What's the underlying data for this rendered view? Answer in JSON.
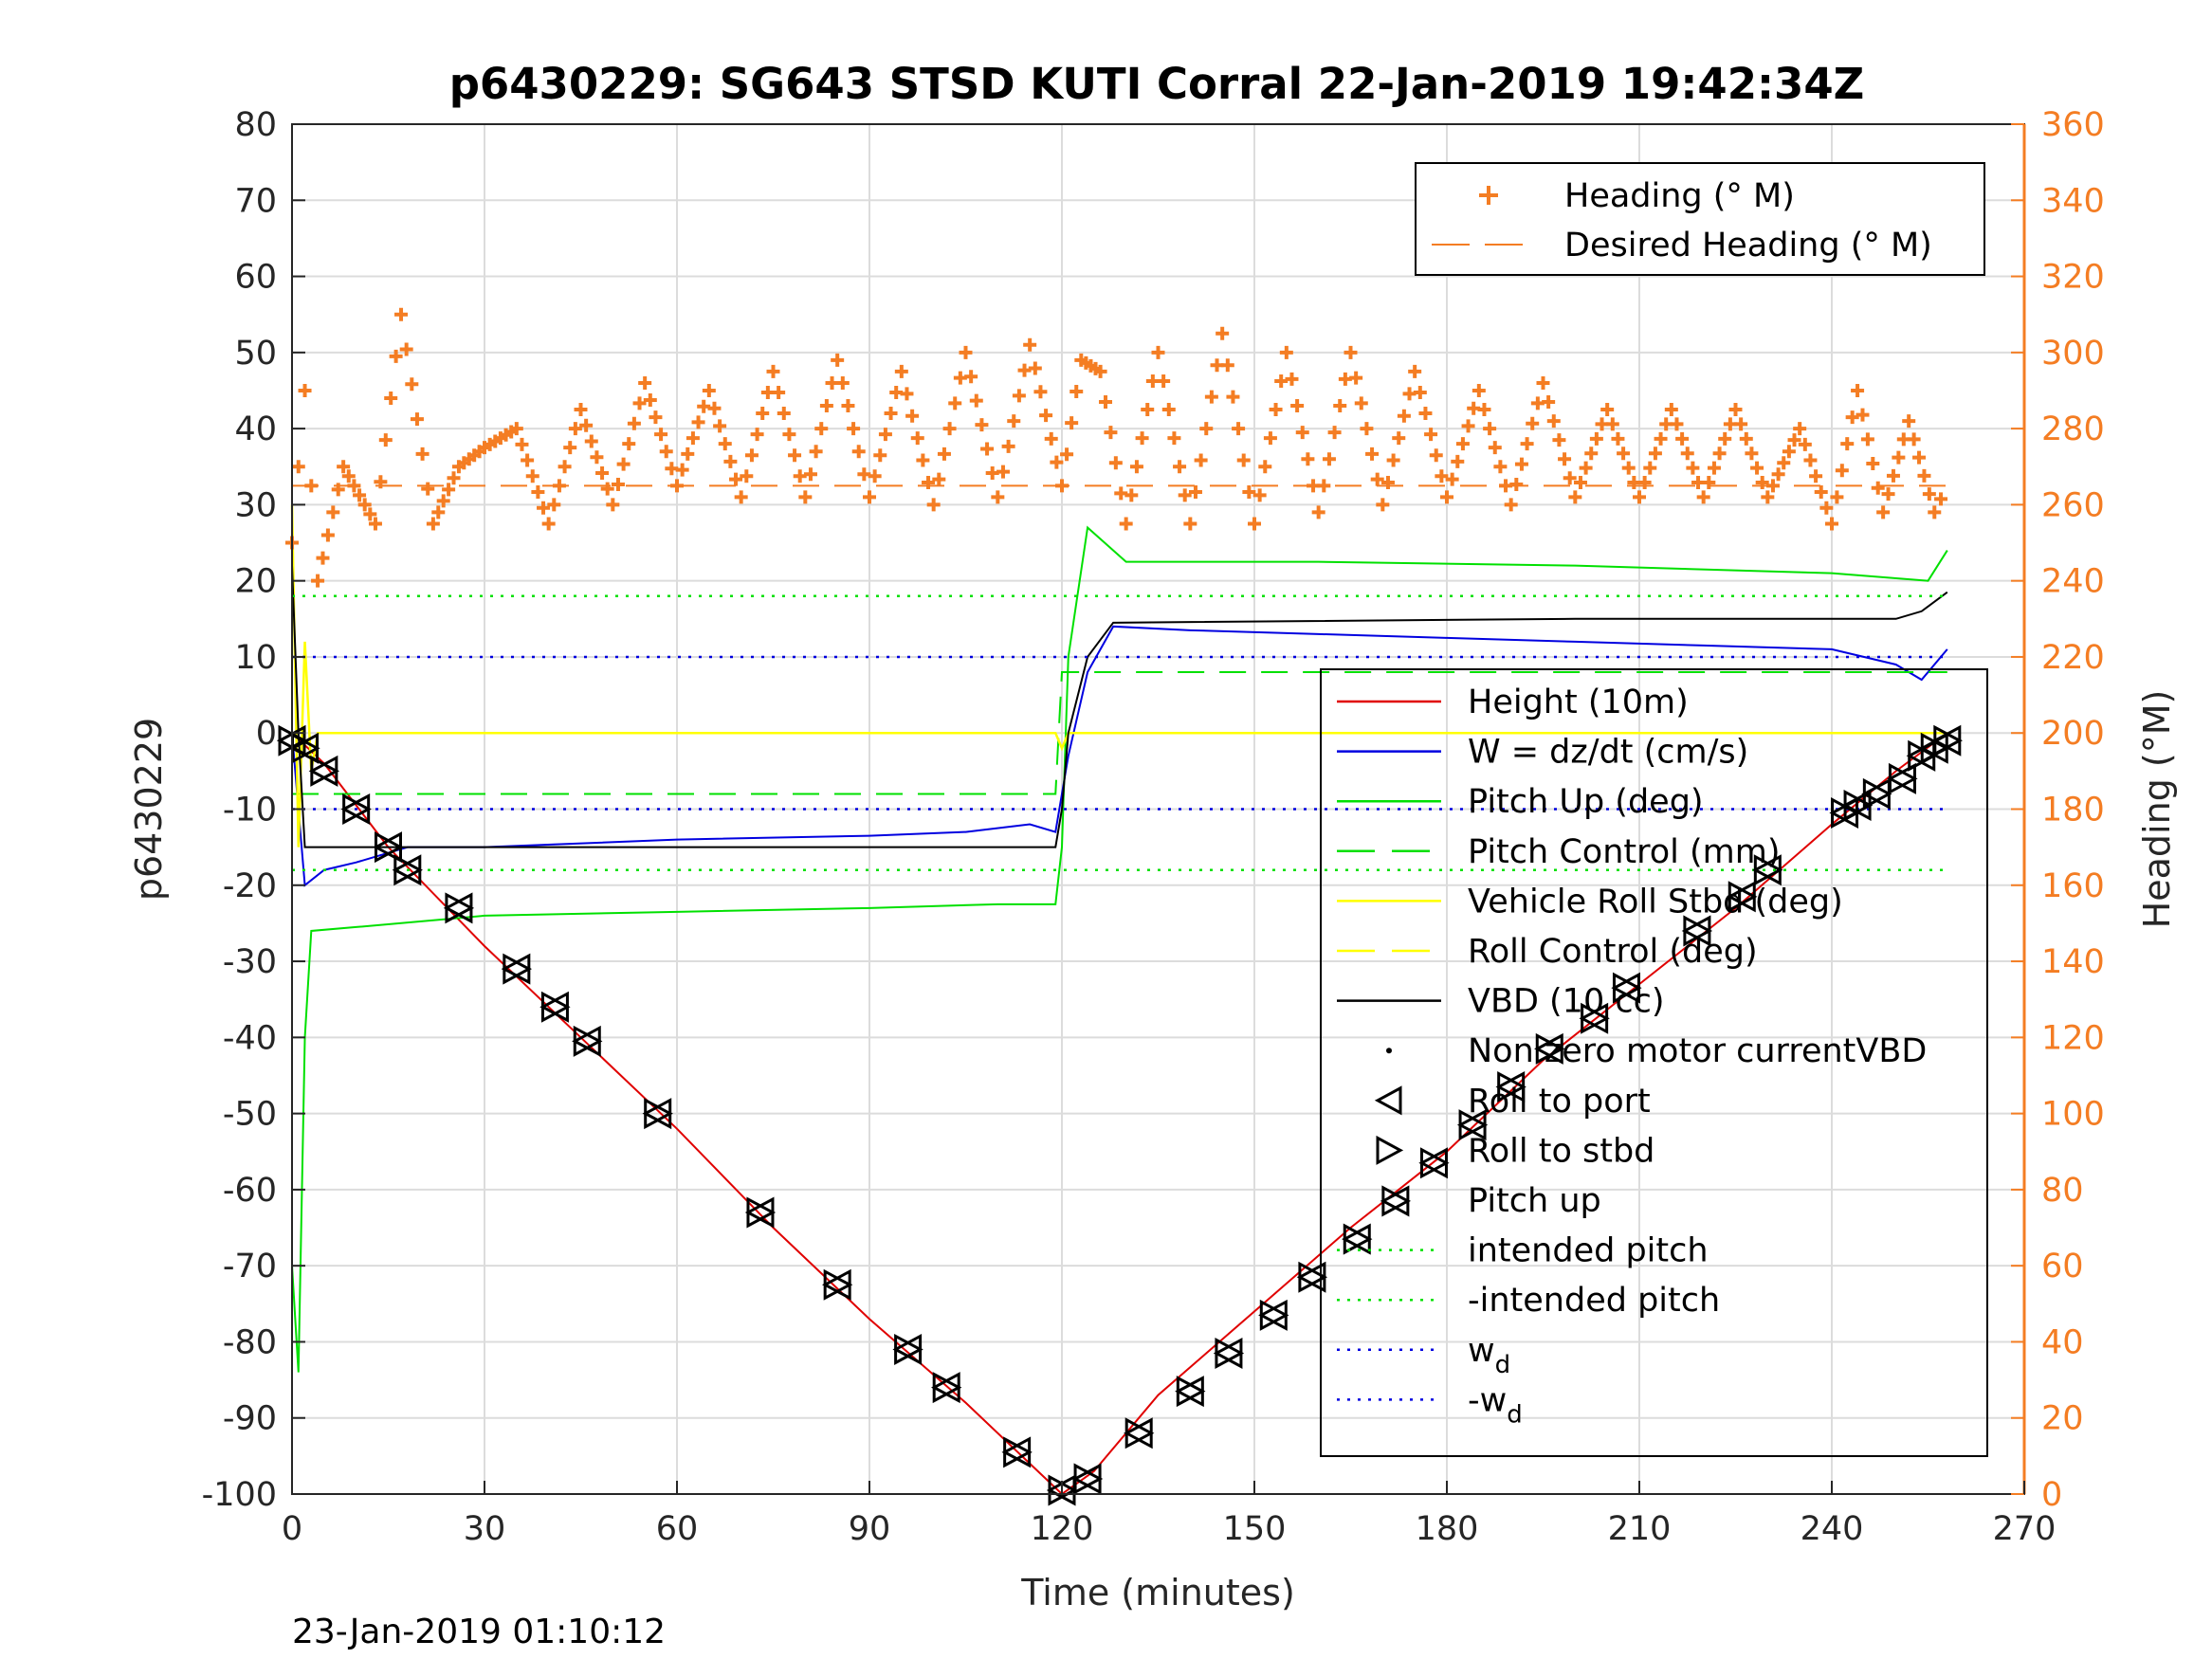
{
  "chart_data": {
    "type": "line",
    "title": "p6430229: SG643 STSD KUTI Corral 22-Jan-2019 19:42:34Z",
    "xlabel": "Time (minutes)",
    "ylabel_left": "p6430229",
    "ylabel_right": "Heading (°M)",
    "footnote": "23-Jan-2019 01:10:12",
    "xlim": [
      0,
      270
    ],
    "ylim_left": [
      -100,
      80
    ],
    "ylim_right": [
      0,
      360
    ],
    "x_ticks": [
      0,
      30,
      60,
      90,
      120,
      150,
      180,
      210,
      240,
      270
    ],
    "y_ticks_left": [
      80,
      70,
      60,
      50,
      40,
      30,
      20,
      10,
      0,
      -10,
      -20,
      -30,
      -40,
      -50,
      -60,
      -70,
      -80,
      -90,
      -100
    ],
    "y_ticks_right": [
      360,
      340,
      320,
      300,
      280,
      260,
      240,
      220,
      200,
      180,
      160,
      140,
      120,
      100,
      80,
      60,
      40,
      20,
      0
    ],
    "grid": true,
    "colors": {
      "heading": "#f47d23",
      "height": "#e00000",
      "w": "#0000e0",
      "pitch": "#00e000",
      "roll": "#ffff00",
      "vbd": "#000000"
    },
    "legend_top": {
      "placement": "top-right",
      "entries": [
        "Heading (° M)",
        "Desired Heading (° M)"
      ]
    },
    "legend_main": {
      "placement": "right",
      "entries": [
        {
          "label": "Height (10m)"
        },
        {
          "label": "W = dz/dt (cm/s)"
        },
        {
          "label": "Pitch Up (deg)"
        },
        {
          "label": "Pitch Control (mm)"
        },
        {
          "label": "Vehicle Roll Stbd (deg)"
        },
        {
          "label": "Roll Control (deg)"
        },
        {
          "label": "VBD (10 cc)"
        },
        {
          "label": "Non zero motor currentVBD"
        },
        {
          "label": "Roll to port"
        },
        {
          "label": "Roll to stbd"
        },
        {
          "label": "Pitch up"
        },
        {
          "label": "intended pitch"
        },
        {
          "label": "-intended pitch"
        },
        {
          "label": "w",
          "sub": "d"
        },
        {
          "label": "-w",
          "sub": "d"
        }
      ]
    },
    "series": [
      {
        "name": "Height (10m)",
        "axis": "left",
        "x": [
          0,
          5,
          15,
          30,
          45,
          60,
          75,
          90,
          105,
          115,
          120,
          125,
          135,
          150,
          165,
          180,
          195,
          210,
          225,
          240,
          250,
          258
        ],
        "y": [
          0,
          -4,
          -15,
          -28,
          -40,
          -52,
          -65,
          -77,
          -88,
          -96,
          -100,
          -97,
          -87,
          -76,
          -65,
          -55,
          -43,
          -33,
          -23,
          -12,
          -5,
          0
        ]
      },
      {
        "name": "W = dz/dt (cm/s)",
        "axis": "left",
        "x": [
          0,
          2,
          5,
          10,
          18,
          30,
          60,
          90,
          105,
          115,
          119,
          121,
          124,
          128,
          140,
          160,
          180,
          200,
          220,
          240,
          250,
          254,
          258
        ],
        "y": [
          0,
          -20,
          -18,
          -17,
          -15,
          -15,
          -14,
          -13.5,
          -13,
          -12,
          -13,
          -3,
          8,
          14,
          13.5,
          13,
          12.5,
          12,
          11.5,
          11,
          9,
          7,
          11
        ]
      },
      {
        "name": "Pitch Up (deg)",
        "axis": "left",
        "x": [
          0,
          1,
          2,
          3,
          10,
          30,
          60,
          90,
          110,
          119,
          120,
          121,
          124,
          130,
          160,
          200,
          240,
          255,
          258
        ],
        "y": [
          -70,
          -84,
          -40,
          -26,
          -25.5,
          -24,
          -23.5,
          -23,
          -22.5,
          -22.5,
          -15,
          10,
          27,
          22.5,
          22.5,
          22,
          21,
          20,
          24
        ]
      },
      {
        "name": "Pitch Control (mm)",
        "axis": "left",
        "x": [
          0,
          119,
          120,
          258
        ],
        "y": [
          -8,
          -8,
          8,
          8
        ]
      },
      {
        "name": "Vehicle Roll Stbd (deg)",
        "axis": "left",
        "x": [
          0,
          1,
          2,
          3,
          4,
          119,
          120,
          121,
          258
        ],
        "y": [
          30,
          -15,
          12,
          -5,
          0,
          0,
          -2,
          0,
          0
        ]
      },
      {
        "name": "VBD (10 cc)",
        "axis": "left",
        "x": [
          0,
          1,
          2,
          119,
          120,
          121,
          124,
          128,
          200,
          250,
          254,
          258
        ],
        "y": [
          22,
          0,
          -15,
          -15,
          -10,
          0,
          10,
          14.5,
          15,
          15,
          16,
          18.5
        ]
      },
      {
        "name": "Heading (° M)",
        "axis": "right",
        "x": [
          0,
          2,
          4,
          8,
          13,
          17,
          22,
          26,
          30,
          35,
          40,
          45,
          50,
          55,
          60,
          65,
          70,
          75,
          80,
          85,
          90,
          95,
          100,
          105,
          110,
          115,
          120,
          123,
          126,
          130,
          135,
          140,
          145,
          150,
          155,
          160,
          165,
          170,
          175,
          180,
          185,
          190,
          195,
          200,
          205,
          210,
          215,
          220,
          225,
          230,
          235,
          240,
          244,
          248,
          252,
          256,
          258
        ],
        "y": [
          250,
          290,
          240,
          270,
          255,
          310,
          255,
          270,
          275,
          280,
          255,
          285,
          260,
          292,
          265,
          290,
          262,
          295,
          262,
          298,
          262,
          295,
          260,
          300,
          262,
          302,
          265,
          298,
          295,
          255,
          300,
          255,
          305,
          255,
          300,
          258,
          300,
          260,
          295,
          262,
          290,
          260,
          292,
          262,
          285,
          262,
          285,
          262,
          285,
          262,
          280,
          255,
          290,
          258,
          282,
          258,
          265
        ]
      },
      {
        "name": "Desired Heading (° M)",
        "axis": "right",
        "x": [
          0,
          258
        ],
        "y": [
          265,
          265
        ]
      },
      {
        "name": "intended pitch",
        "axis": "left",
        "x": [
          0,
          258
        ],
        "y": [
          18,
          18
        ]
      },
      {
        "name": "-intended pitch",
        "axis": "left",
        "x": [
          0,
          258
        ],
        "y": [
          -18,
          -18
        ]
      },
      {
        "name": "w_d",
        "axis": "left",
        "x": [
          0,
          258
        ],
        "y": [
          10,
          10
        ]
      },
      {
        "name": "-w_d",
        "axis": "left",
        "x": [
          0,
          258
        ],
        "y": [
          -10,
          -10
        ]
      }
    ],
    "markers": {
      "roll_to_port": {
        "x": [
          0,
          2,
          5,
          10,
          15,
          18,
          26,
          35,
          41,
          46,
          57,
          73,
          85,
          96,
          102,
          113,
          120,
          124,
          132,
          140,
          146,
          153,
          159,
          166,
          172,
          178,
          184,
          190,
          196,
          203,
          208,
          219,
          226,
          230,
          242,
          244,
          247,
          251,
          254,
          256,
          258
        ],
        "y": [
          -1,
          -2,
          -5,
          -10,
          -15,
          -18,
          -23,
          -31,
          -36,
          -40.5,
          -50,
          -63,
          -72.5,
          -81,
          -86,
          -94.5,
          -99.5,
          -98,
          -92,
          -86.5,
          -81.5,
          -76.5,
          -71.5,
          -66.5,
          -61.5,
          -56.5,
          -51.5,
          -46.5,
          -41.5,
          -37.5,
          -33.5,
          -26,
          -21.5,
          -18,
          -10.5,
          -9.5,
          -8,
          -6,
          -3,
          -2,
          -1
        ]
      }
    }
  }
}
